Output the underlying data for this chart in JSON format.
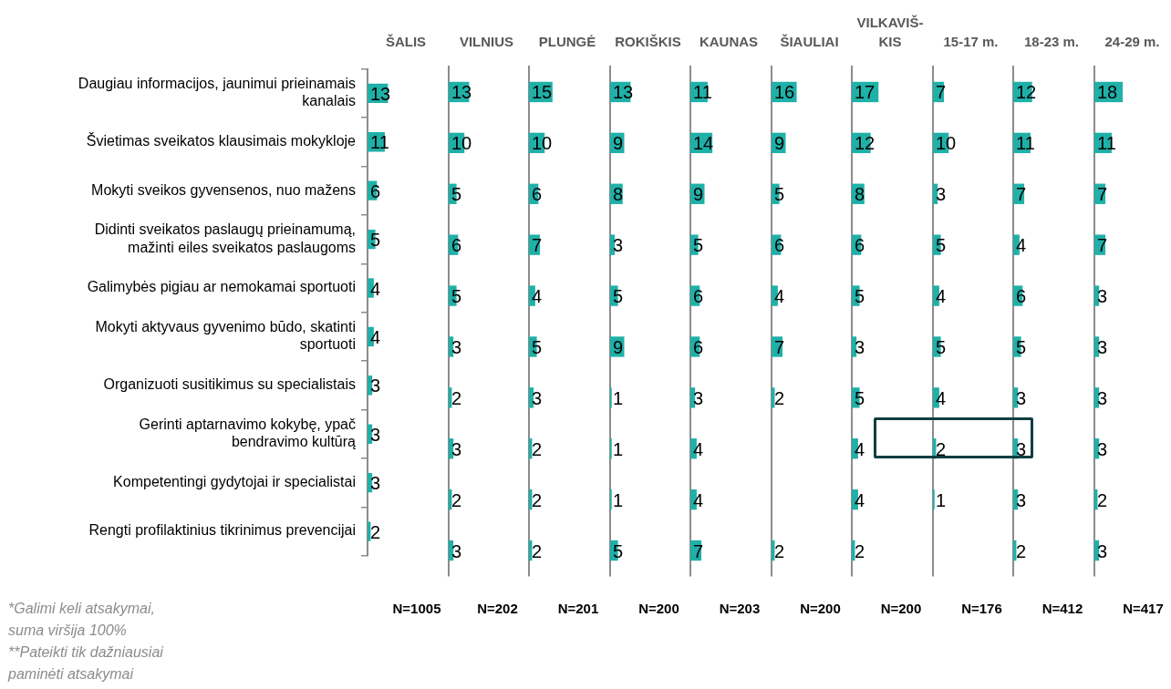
{
  "chart_data": [
    {
      "type": "bar",
      "orientation": "horizontal",
      "title": "ŠALIS",
      "categories": [
        "Daugiau informacijos, jaunimui prieinamais kanalais",
        "Švietimas sveikatos klausimais mokykloje",
        "Mokyti sveikos gyvensenos, nuo mažens",
        "Didinti sveikatos paslaugų prieinamumą, mažinti eiles sveikatos paslaugoms",
        "Galimybės pigiau ar nemokamai sportuoti",
        "Mokyti aktyvaus gyvenimo būdo, skatinti sportuoti",
        "Organizuoti susitikimus su specialistais",
        "Gerinti aptarnavimo kokybę, ypač bendravimo kultūrą",
        "Kompetentingi gydytojai ir specialistai",
        "Rengti profilaktinius tikrinimus prevencijai"
      ],
      "values": [
        13,
        11,
        6,
        5,
        4,
        4,
        3,
        3,
        3,
        2
      ],
      "color": "#1fb0a8",
      "data_labels": true,
      "tick_labels": "y",
      "annotations": [
        "N=1005",
        "*Galimi keli atsakymai, suma viršija 100%",
        "**Pateikti tik dažniausiai paminėti atsakymai"
      ]
    },
    {
      "type": "bar",
      "orientation": "horizontal",
      "title": "VILNIUS",
      "categories": [
        null,
        null,
        null,
        null,
        null,
        null,
        null,
        null,
        null,
        null
      ],
      "values": [
        13,
        10,
        5,
        6,
        5,
        3,
        2,
        3,
        2,
        3
      ],
      "color": "#1fb0a8",
      "data_labels": true,
      "tick_labels": false,
      "annotations": [
        "N=202"
      ]
    },
    {
      "type": "bar",
      "orientation": "horizontal",
      "title": "PLUNGĖ",
      "categories": [
        null,
        null,
        null,
        null,
        null,
        null,
        null,
        null,
        null,
        null
      ],
      "values": [
        15,
        10,
        6,
        7,
        4,
        5,
        3,
        2,
        2,
        2
      ],
      "color": "#1fb0a8",
      "data_labels": true,
      "tick_labels": false,
      "annotations": [
        "N=201"
      ]
    },
    {
      "type": "bar",
      "orientation": "horizontal",
      "title": "ROKIŠKIS",
      "categories": [
        null,
        null,
        null,
        null,
        null,
        null,
        null,
        null,
        null,
        null
      ],
      "values": [
        13,
        9,
        8,
        3,
        5,
        9,
        1,
        1,
        1,
        5
      ],
      "color": "#1fb0a8",
      "data_labels": true,
      "tick_labels": false,
      "annotations": [
        "N=200"
      ]
    },
    {
      "type": "bar",
      "orientation": "horizontal",
      "title": "KAUNAS",
      "categories": [
        null,
        null,
        null,
        null,
        null,
        null,
        null,
        null,
        null,
        null
      ],
      "values": [
        11,
        14,
        9,
        5,
        6,
        6,
        3,
        4,
        4,
        7
      ],
      "color": "#1fb0a8",
      "data_labels": true,
      "tick_labels": false,
      "annotations": [
        "N=203"
      ]
    },
    {
      "type": "bar",
      "orientation": "horizontal",
      "title": "ŠIAULIAI",
      "categories": [
        null,
        null,
        null,
        null,
        null,
        null,
        null,
        null,
        null,
        null
      ],
      "values": [
        16,
        9,
        5,
        6,
        4,
        7,
        2,
        null,
        null,
        2
      ],
      "color": "#1fb0a8",
      "data_labels": true,
      "tick_labels": false,
      "annotations": [
        "N=200"
      ]
    },
    {
      "type": "bar",
      "orientation": "horizontal",
      "title": "VILKAVIŠ-KIS",
      "categories": [
        null,
        null,
        null,
        null,
        null,
        null,
        null,
        null,
        null,
        null
      ],
      "values": [
        17,
        12,
        8,
        6,
        5,
        3,
        5,
        4,
        4,
        2
      ],
      "color": "#1fb0a8",
      "data_labels": true,
      "tick_labels": false,
      "annotations": [
        "N=200"
      ]
    },
    {
      "type": "bar",
      "orientation": "horizontal",
      "title": "15-17 m.",
      "categories": [
        null,
        null,
        null,
        null,
        null,
        null,
        null,
        null,
        null,
        null
      ],
      "values": [
        7,
        10,
        3,
        5,
        4,
        5,
        4,
        2,
        1,
        null
      ],
      "color": "#1fb0a8",
      "data_labels": true,
      "tick_labels": false,
      "annotations": [
        "N=176"
      ]
    },
    {
      "type": "bar",
      "orientation": "horizontal",
      "title": "18-23 m.",
      "categories": [
        null,
        null,
        null,
        null,
        null,
        null,
        null,
        null,
        null,
        null
      ],
      "values": [
        12,
        11,
        7,
        4,
        6,
        5,
        3,
        3,
        3,
        2
      ],
      "color": "#1fb0a8",
      "data_labels": true,
      "tick_labels": false,
      "annotations": [
        "N=412"
      ]
    },
    {
      "type": "bar",
      "orientation": "horizontal",
      "title": "24-29 m.",
      "categories": [
        null,
        null,
        null,
        null,
        null,
        null,
        null,
        null,
        null,
        null
      ],
      "values": [
        18,
        11,
        7,
        7,
        3,
        3,
        3,
        3,
        2,
        3
      ],
      "color": "#1fb0a8",
      "data_labels": true,
      "tick_labels": false,
      "annotations": [
        "N=417"
      ]
    }
  ]
}
